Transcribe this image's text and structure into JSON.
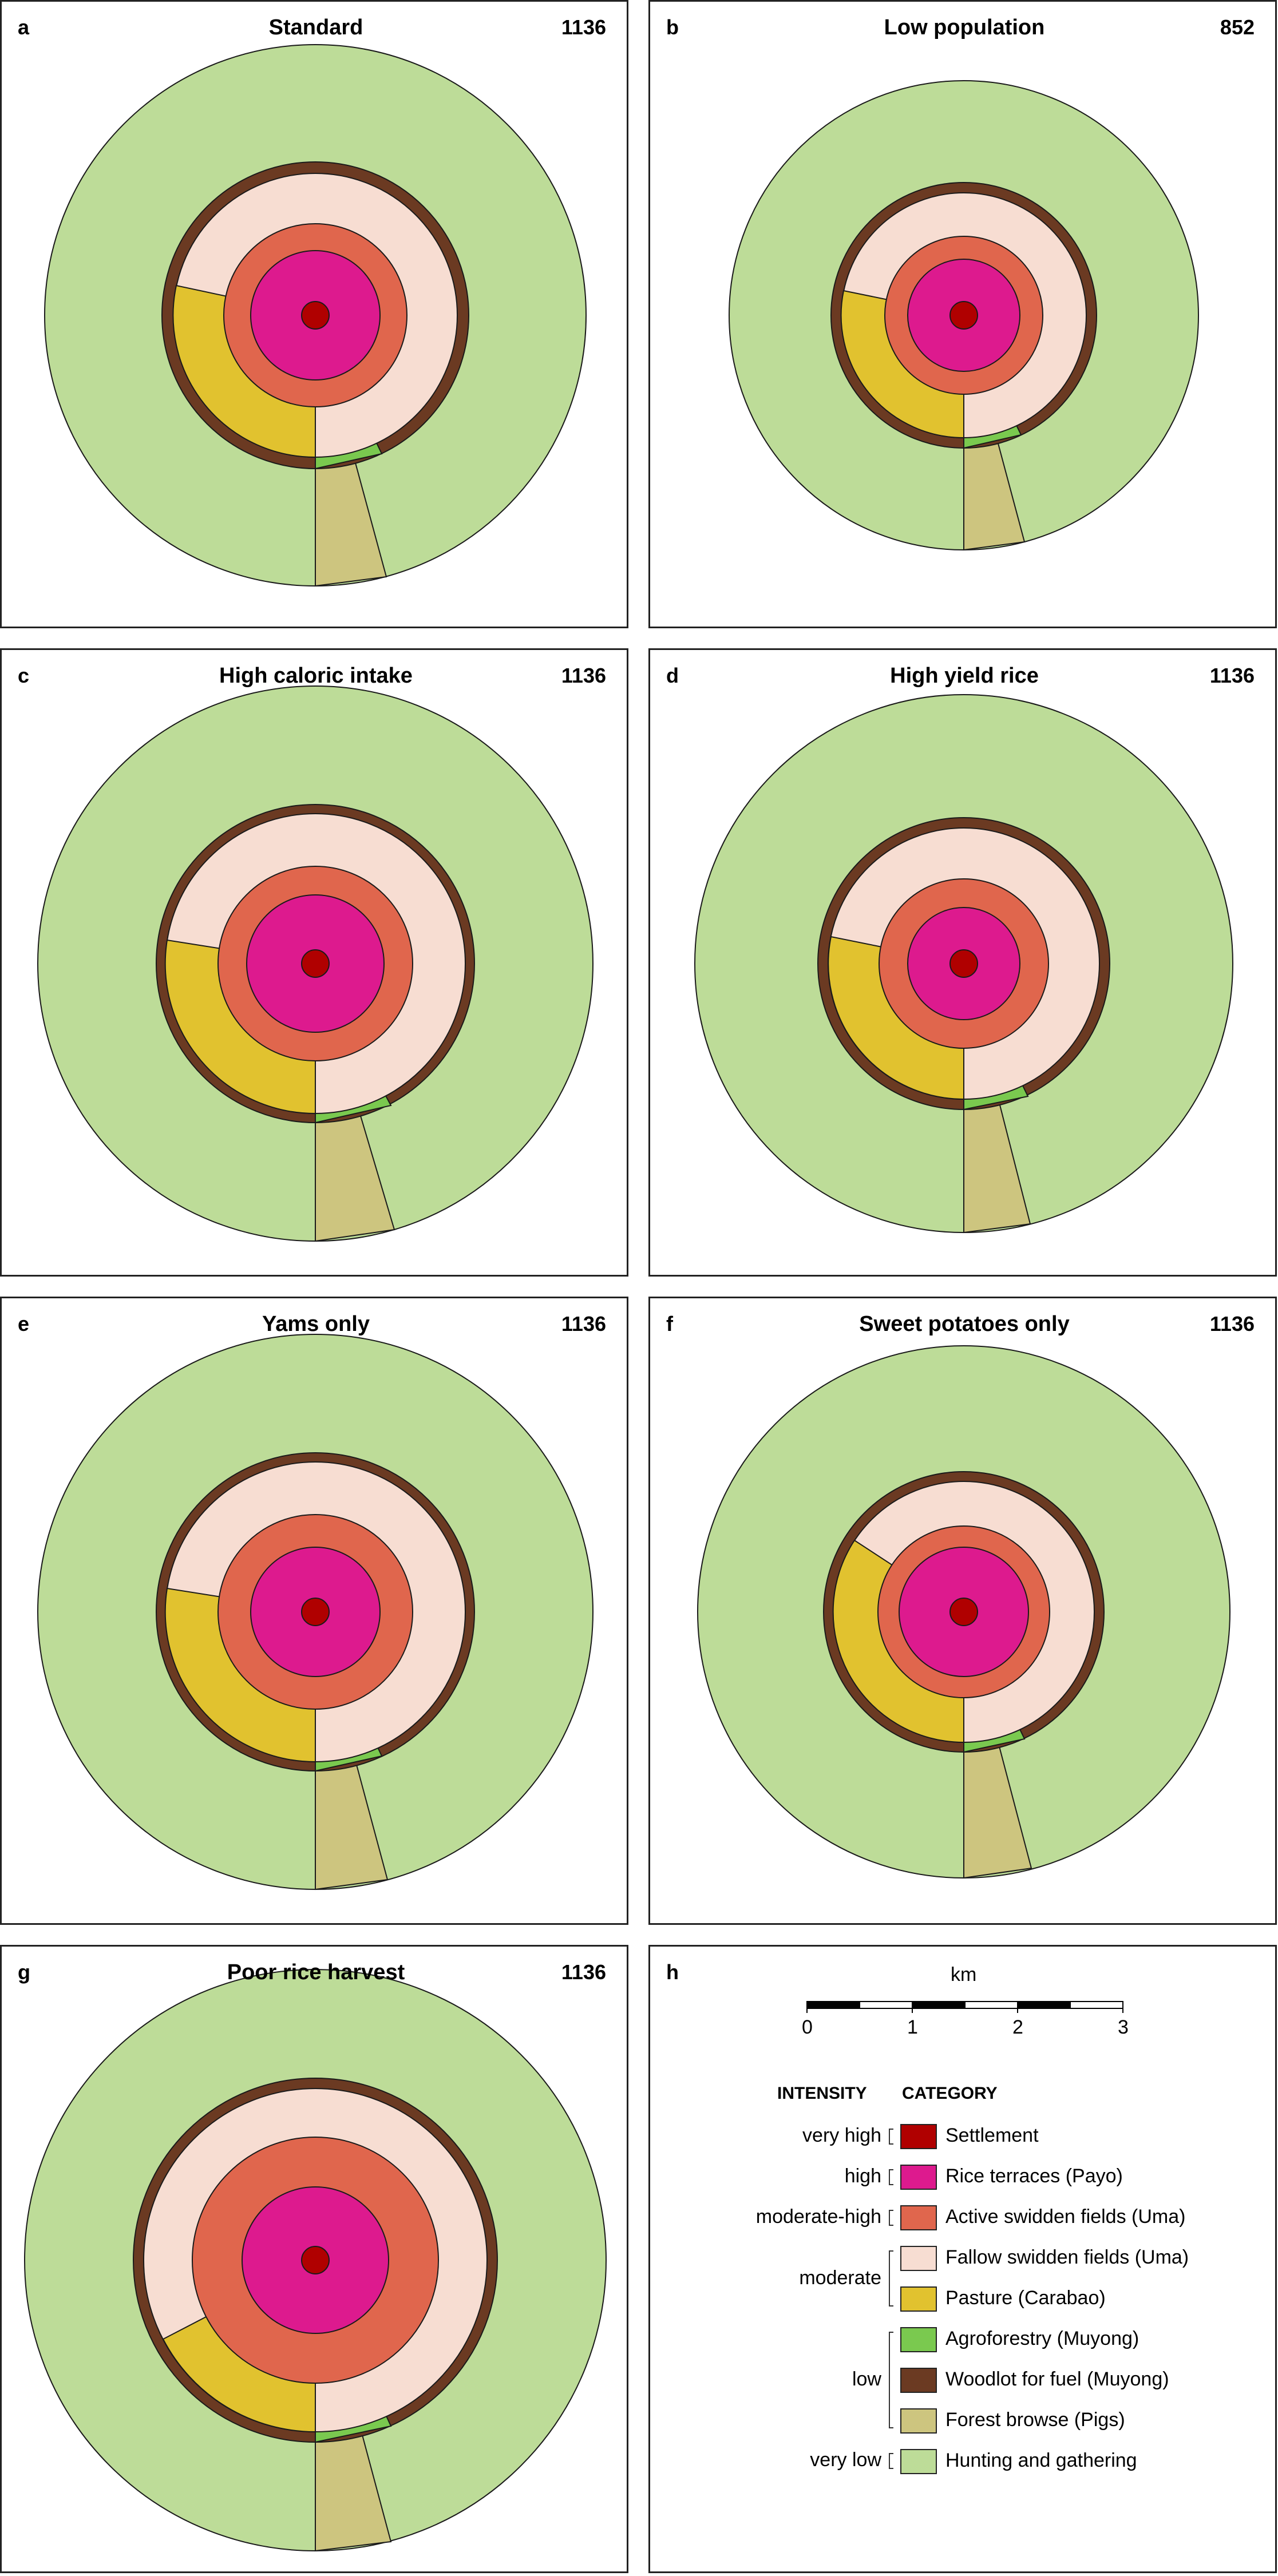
{
  "colors": {
    "settlement": "#b00000",
    "rice": "#dd1a8e",
    "active": "#e0664d",
    "fallow": "#f7ddd2",
    "pasture": "#e1c22f",
    "agroforestry": "#7ac94f",
    "woodlot": "#6b3a22",
    "forest": "#cdc57f",
    "hunting": "#bddc98"
  },
  "panels": [
    {
      "label": "a",
      "title": "Standard",
      "value": "1136"
    },
    {
      "label": "b",
      "title": "Low population",
      "value": "852"
    },
    {
      "label": "c",
      "title": "High caloric intake",
      "value": "1136"
    },
    {
      "label": "d",
      "title": "High yield rice",
      "value": "1136"
    },
    {
      "label": "e",
      "title": "Yams only",
      "value": "1136"
    },
    {
      "label": "f",
      "title": "Sweet potatoes only",
      "value": "1136"
    },
    {
      "label": "g",
      "title": "Poor rice harvest",
      "value": "1136"
    }
  ],
  "legend": {
    "label": "h",
    "scale_unit": "km",
    "scale_ticks": [
      "0",
      "1",
      "2",
      "3"
    ],
    "intensity_header": "INTENSITY",
    "category_header": "CATEGORY",
    "intensities": [
      "very high",
      "high",
      "moderate-high",
      "moderate",
      "low",
      "very low"
    ],
    "categories": [
      {
        "key": "settlement",
        "label": "Settlement"
      },
      {
        "key": "rice",
        "label": "Rice terraces (Payo)"
      },
      {
        "key": "active",
        "label": "Active swidden fields (Uma)"
      },
      {
        "key": "fallow",
        "label": "Fallow swidden fields (Uma)"
      },
      {
        "key": "pasture",
        "label": "Pasture (Carabao)"
      },
      {
        "key": "agroforestry",
        "label": "Agroforestry (Muyong)"
      },
      {
        "key": "woodlot",
        "label": "Woodlot for fuel (Muyong)"
      },
      {
        "key": "forest",
        "label": "Forest browse (Pigs)"
      },
      {
        "key": "hunting",
        "label": "Hunting and gathering"
      }
    ]
  }
}
